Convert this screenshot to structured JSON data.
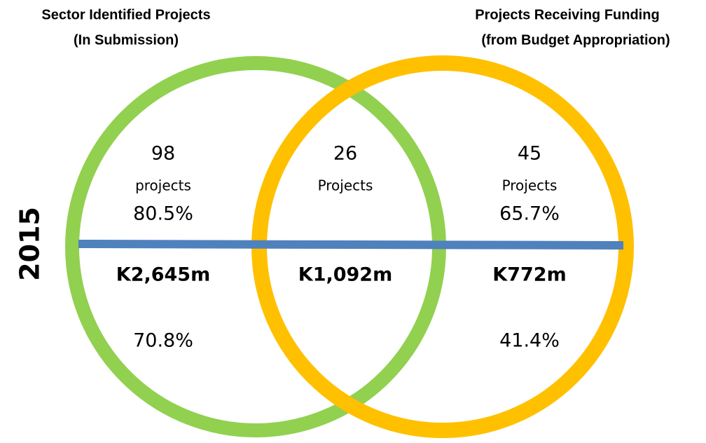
{
  "left_title": [
    "Sector Identified Projects",
    "(In Submission)"
  ],
  "right_title": [
    "Projects Receiving Funding",
    "(from Budget Appropriation)"
  ],
  "year": "2015",
  "regions": {
    "left": {
      "count": "98",
      "unit": "projects",
      "count_share": "80.5%",
      "amount": "K2,645m",
      "amount_share": "70.8%"
    },
    "middle": {
      "count": "26",
      "unit": "Projects",
      "amount": "K1,092m"
    },
    "right": {
      "count": "45",
      "unit": "Projects",
      "count_share": "65.7%",
      "amount": "K772m",
      "amount_share": "41.4%"
    }
  }
}
